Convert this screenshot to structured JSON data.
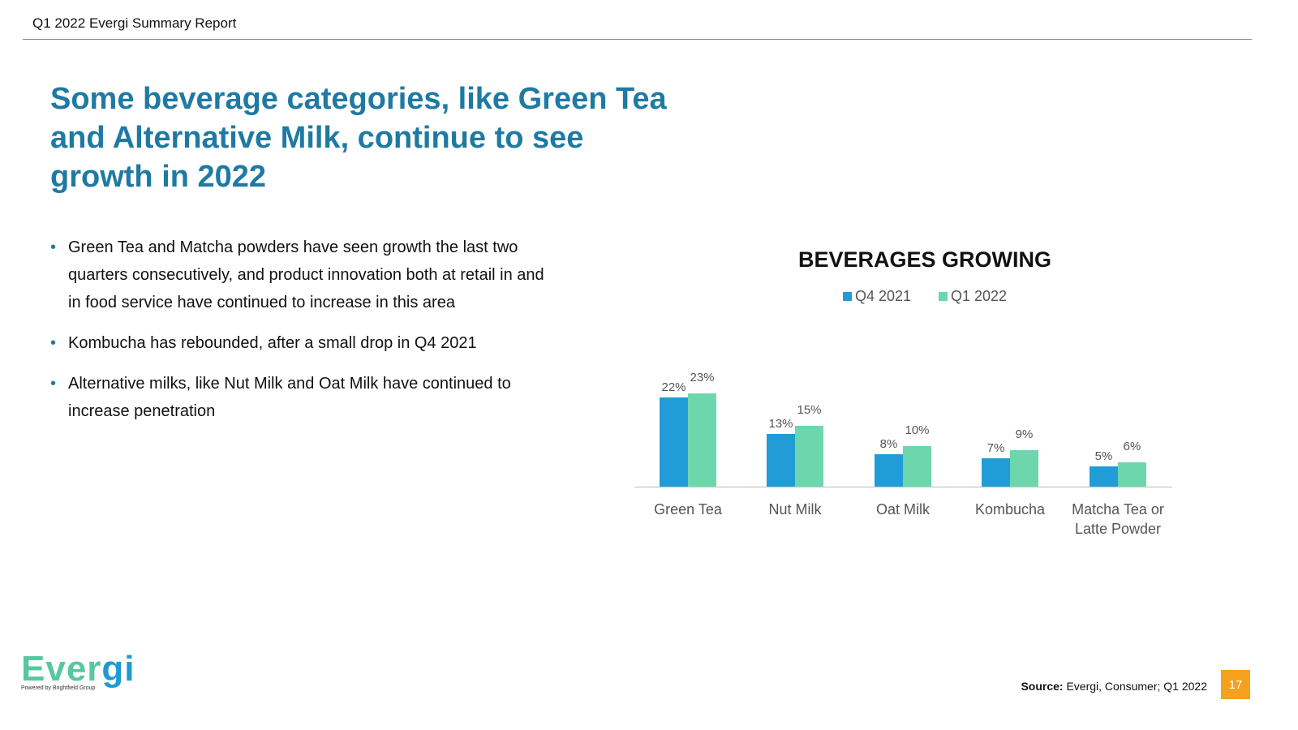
{
  "header": {
    "report_title": "Q1 2022 Evergi Summary Report"
  },
  "headline": "Some beverage categories, like Green Tea and Alternative Milk, continue to see growth in 2022",
  "bullets": [
    "Green Tea and Matcha powders have seen growth the last two quarters consecutively, and product innovation both at retail in and in food service have continued to increase in this area",
    "Kombucha has rebounded, after a small drop in Q4 2021",
    "Alternative milks, like Nut Milk and Oat Milk have continued to increase penetration"
  ],
  "chart_data": {
    "type": "bar",
    "title": "BEVERAGES GROWING",
    "categories": [
      "Green Tea",
      "Nut Milk",
      "Oat Milk",
      "Kombucha",
      "Matcha Tea or Latte Powder"
    ],
    "series": [
      {
        "name": "Q4 2021",
        "color": "#229cd6",
        "values": [
          22,
          13,
          8,
          7,
          5
        ],
        "labels": [
          "22%",
          "13%",
          "8%",
          "7%",
          "5%"
        ]
      },
      {
        "name": "Q1 2022",
        "color": "#6dd6ad",
        "values": [
          23,
          15,
          10,
          9,
          6
        ],
        "labels": [
          "23%",
          "15%",
          "10%",
          "9%",
          "6%"
        ]
      }
    ],
    "ylim": [
      0,
      25
    ],
    "legend_position": "top-center",
    "grid": false
  },
  "footer": {
    "logo_text": "Evergi",
    "logo_tagline": "Powered by Brightfield Group",
    "source_label": "Source:",
    "source_text": "Evergi, Consumer; Q1 2022",
    "page_number": "17"
  },
  "colors": {
    "accent": "#1f7aa3",
    "page_badge": "#f4a11e"
  }
}
